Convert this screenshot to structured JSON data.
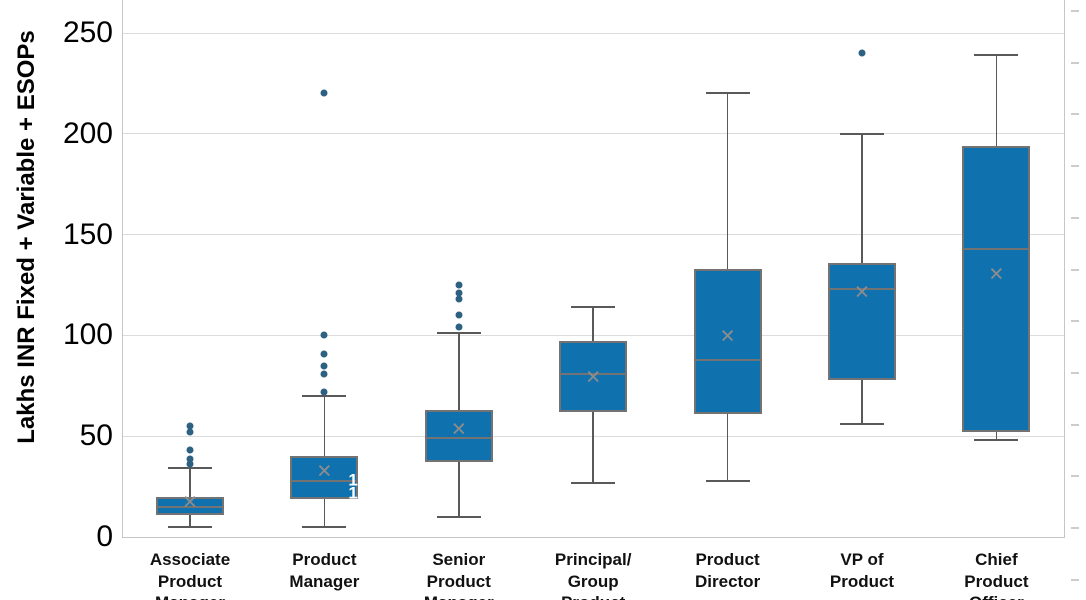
{
  "chart_data": {
    "type": "box",
    "title": "",
    "xlabel": "",
    "ylabel": "Lakhs INR Fixed + Variable + ESOPs",
    "yticks": [
      0,
      50,
      100,
      150,
      200,
      250
    ],
    "ytick_labels": [
      "0",
      "50",
      "100",
      "150",
      "200",
      "250"
    ],
    "ylim": [
      0,
      266
    ],
    "grid": true,
    "legend": false,
    "mean_marker_glyph": "✕",
    "categories": [
      {
        "name": "associate-product-manager",
        "label_lines": [
          "Associate",
          "Product",
          "Manager"
        ],
        "stats": {
          "whisker_low": 5,
          "q1": 11,
          "median": 15,
          "mean": 17,
          "q3": 20,
          "whisker_high": 34
        },
        "outliers": [
          36,
          38.5,
          43,
          52,
          55
        ]
      },
      {
        "name": "product-manager",
        "label_lines": [
          "Product",
          "Manager"
        ],
        "stats": {
          "whisker_low": 5,
          "q1": 19,
          "median": 28,
          "mean": 32,
          "q3": 40,
          "whisker_high": 70
        },
        "outliers": [
          72,
          81,
          85,
          91,
          100,
          220
        ]
      },
      {
        "name": "senior-product-manager",
        "label_lines": [
          "Senior",
          "Product",
          "Manager"
        ],
        "stats": {
          "whisker_low": 10,
          "q1": 37,
          "median": 49,
          "mean": 53,
          "q3": 63,
          "whisker_high": 101
        },
        "outliers": [
          104,
          110,
          118,
          121,
          125
        ]
      },
      {
        "name": "principal-group-product-manager",
        "label_lines": [
          "Principal/",
          "Group",
          "Product"
        ],
        "stats": {
          "whisker_low": 27,
          "q1": 62,
          "median": 81,
          "mean": 79,
          "q3": 97,
          "whisker_high": 114
        },
        "outliers": []
      },
      {
        "name": "product-director",
        "label_lines": [
          "Product",
          "Director"
        ],
        "stats": {
          "whisker_low": 28,
          "q1": 61,
          "median": 88,
          "mean": 99,
          "q3": 133,
          "whisker_high": 220
        },
        "outliers": []
      },
      {
        "name": "vp-of-product",
        "label_lines": [
          "VP of",
          "Product"
        ],
        "stats": {
          "whisker_low": 56,
          "q1": 78,
          "median": 123,
          "mean": 121,
          "q3": 136,
          "whisker_high": 200
        },
        "outliers": [
          240
        ]
      },
      {
        "name": "chief-product-officer",
        "label_lines": [
          "Chief",
          "Product",
          "Officer"
        ],
        "stats": {
          "whisker_low": 48,
          "q1": 52,
          "median": 143,
          "mean": 130,
          "q3": 194,
          "whisker_high": 239
        },
        "outliers": []
      }
    ],
    "clipped_inner_labels": [
      {
        "category_index": 1,
        "text": "1",
        "value": 28.5
      },
      {
        "category_index": 1,
        "text": "1",
        "value": 22
      }
    ],
    "colors": {
      "box_fill": "#0f72ae",
      "box_border": "#737373",
      "whisker": "#595959",
      "median": "#737373",
      "mean_marker": "#8c8c8c",
      "outlier": "#2d6181",
      "gridline": "#dcdcdc",
      "axis_line": "#c6c6c6",
      "tick_text": "#000000",
      "category_text": "#111111"
    }
  }
}
